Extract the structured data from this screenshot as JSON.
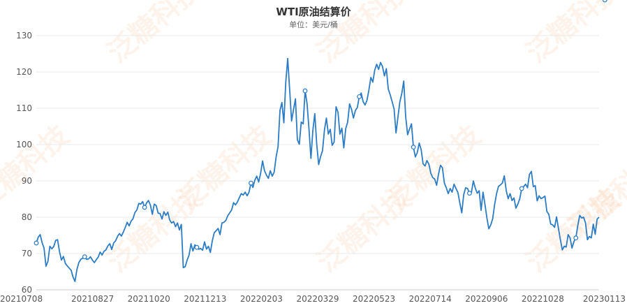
{
  "watermark_text": "泛糖科技",
  "colors": {
    "line": "#2c7cc4",
    "grid": "#e8e8e8",
    "axis": "#cccccc",
    "marker_fill": "#ffffff"
  },
  "chart_data": {
    "type": "line",
    "title": "WTI原油结算价",
    "subtitle": "单位：美元/桶",
    "ylim": [
      60,
      130
    ],
    "y_ticks": [
      60,
      70,
      80,
      90,
      100,
      110,
      120,
      130
    ],
    "x_ticks": [
      "20210708",
      "20210827",
      "20211020",
      "20211213",
      "20220203",
      "20220329",
      "20220523",
      "20220714",
      "20220906",
      "20221028",
      "20230113"
    ],
    "grid": "horizontal",
    "legend": "none",
    "series": [
      {
        "values": [
          72.9,
          74.5,
          75.2,
          73.0,
          71.5,
          66.5,
          67.8,
          72.0,
          71.3,
          71.9,
          73.6,
          73.8,
          70.5,
          68.2,
          69.2,
          67.3,
          66.6,
          66.0,
          65.4,
          63.5,
          62.3,
          65.6,
          67.5,
          68.4,
          68.7,
          69.1,
          68.4,
          68.5,
          69.1,
          68.2,
          67.5,
          68.3,
          69.0,
          70.4,
          69.6,
          70.6,
          71.0,
          72.1,
          72.7,
          71.1,
          72.9,
          73.5,
          74.7,
          75.5,
          74.8,
          75.9,
          77.2,
          78.6,
          77.6,
          78.9,
          79.6,
          81.3,
          82.0,
          83.8,
          83.6,
          84.3,
          82.7,
          83.9,
          84.6,
          83.3,
          80.8,
          83.6,
          83.2,
          81.1,
          81.0,
          79.5,
          81.5,
          80.5,
          81.4,
          79.2,
          78.4,
          78.8,
          77.4,
          78.4,
          76.5,
          78.0,
          66.1,
          66.4,
          68.2,
          69.6,
          72.7,
          70.7,
          72.4,
          71.7,
          71.2,
          71.4,
          70.9,
          73.2,
          71.2,
          72.0,
          70.3,
          73.5,
          75.7,
          76.3,
          76.9,
          75.2,
          78.4,
          78.6,
          79.1,
          80.4,
          81.2,
          82.0,
          84.0,
          83.4,
          84.2,
          85.4,
          86.5,
          86.1,
          86.9,
          85.9,
          86.9,
          89.4,
          88.2,
          90.2,
          91.3,
          89.7,
          92.1,
          95.5,
          92.8,
          91.6,
          90.7,
          92.8,
          91.3,
          92.4,
          96.6,
          99.4,
          109.4,
          111.6,
          106.0,
          117.2,
          123.7,
          115.1,
          106.5,
          109.6,
          112.6,
          101.3,
          100.1,
          106.2,
          105.7,
          114.8,
          111.3,
          104.3,
          96.2,
          103.9,
          108.5,
          100.1,
          94.5,
          96.7,
          98.3,
          104.0,
          107.3,
          102.9,
          104.2,
          99.8,
          100.7,
          110.4,
          108.9,
          102.9,
          104.5,
          99.1,
          104.4,
          106.2,
          111.2,
          109.7,
          107.3,
          109.4,
          110.2,
          113.2,
          114.2,
          111.8,
          110.9,
          112.2,
          115.1,
          118.5,
          117.2,
          120.5,
          122.1,
          120.7,
          122.6,
          121.5,
          118.9,
          120.9,
          115.3,
          113.7,
          111.8,
          109.8,
          103.2,
          107.6,
          111.8,
          114.1,
          117.5,
          107.7,
          102.7,
          104.3,
          105.7,
          99.3,
          96.6,
          97.8,
          100.4,
          98.6,
          94.7,
          94.1,
          95.6,
          94.6,
          92.1,
          90.9,
          90.5,
          88.8,
          91.9,
          94.3,
          93.6,
          89.4,
          88.1,
          86.5,
          87.9,
          86.9,
          89.1,
          87.9,
          86.8,
          83.9,
          81.2,
          86.2,
          88.1,
          87.9,
          86.6,
          86.8,
          90.0,
          88.0,
          86.6,
          87.3,
          81.9,
          86.9,
          83.5,
          79.8,
          76.8,
          77.9,
          79.6,
          83.5,
          86.5,
          88.5,
          88.9,
          89.4,
          91.4,
          87.3,
          85.1,
          86.5,
          84.6,
          85.3,
          82.5,
          83.6,
          85.1,
          87.9,
          88.4,
          89.1,
          88.1,
          91.8,
          92.6,
          88.4,
          88.7,
          84.5,
          85.9,
          85.1,
          85.4,
          85.8,
          81.6,
          80.8,
          78.1,
          77.9,
          77.2,
          80.1,
          76.9,
          73.8,
          71.0,
          72.0,
          71.8,
          75.2,
          74.3,
          71.5,
          73.3,
          74.3,
          77.7,
          80.5,
          79.8,
          80.0,
          78.4,
          73.8,
          74.7,
          74.3,
          78.1,
          75.3,
          79.5,
          80.0
        ],
        "marked_points": [
          0,
          25,
          56,
          83,
          111,
          139,
          167,
          195,
          224,
          251,
          279,
          294
        ]
      }
    ]
  }
}
